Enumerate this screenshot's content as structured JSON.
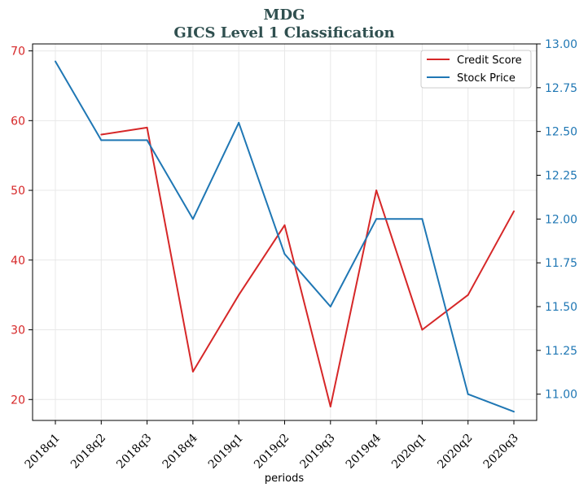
{
  "chart_data": {
    "type": "line",
    "title": "MDG",
    "subtitle": "GICS Level 1 Classification",
    "xlabel": "periods",
    "ylabel_left": "",
    "ylabel_right": "",
    "categories": [
      "2018q1",
      "2018q2",
      "2018q3",
      "2018q4",
      "2019q1",
      "2019q2",
      "2019q3",
      "2019q4",
      "2020q1",
      "2020q2",
      "2020q3"
    ],
    "ylim_left": [
      17,
      71
    ],
    "ylim_right": [
      10.85,
      13.0
    ],
    "yticks_left": [
      "20",
      "30",
      "40",
      "50",
      "60",
      "70"
    ],
    "yticks_right": [
      "11.00",
      "11.25",
      "11.50",
      "11.75",
      "12.00",
      "12.25",
      "12.50",
      "12.75",
      "13.00"
    ],
    "grid": true,
    "legend_position": "top-right",
    "series": [
      {
        "name": "Credit Score",
        "axis": "left",
        "color": "#d62728",
        "values": [
          null,
          58,
          59,
          24,
          35,
          45,
          19,
          50,
          30,
          35,
          47
        ]
      },
      {
        "name": "Stock Price",
        "axis": "right",
        "color": "#1f77b4",
        "values": [
          12.9,
          12.45,
          12.45,
          12.0,
          12.55,
          11.8,
          11.5,
          12.0,
          12.0,
          11.0,
          10.9
        ]
      }
    ],
    "colors": {
      "left_axis": "#d62728",
      "right_axis": "#1f77b4",
      "title": "#2f4f4f"
    }
  }
}
